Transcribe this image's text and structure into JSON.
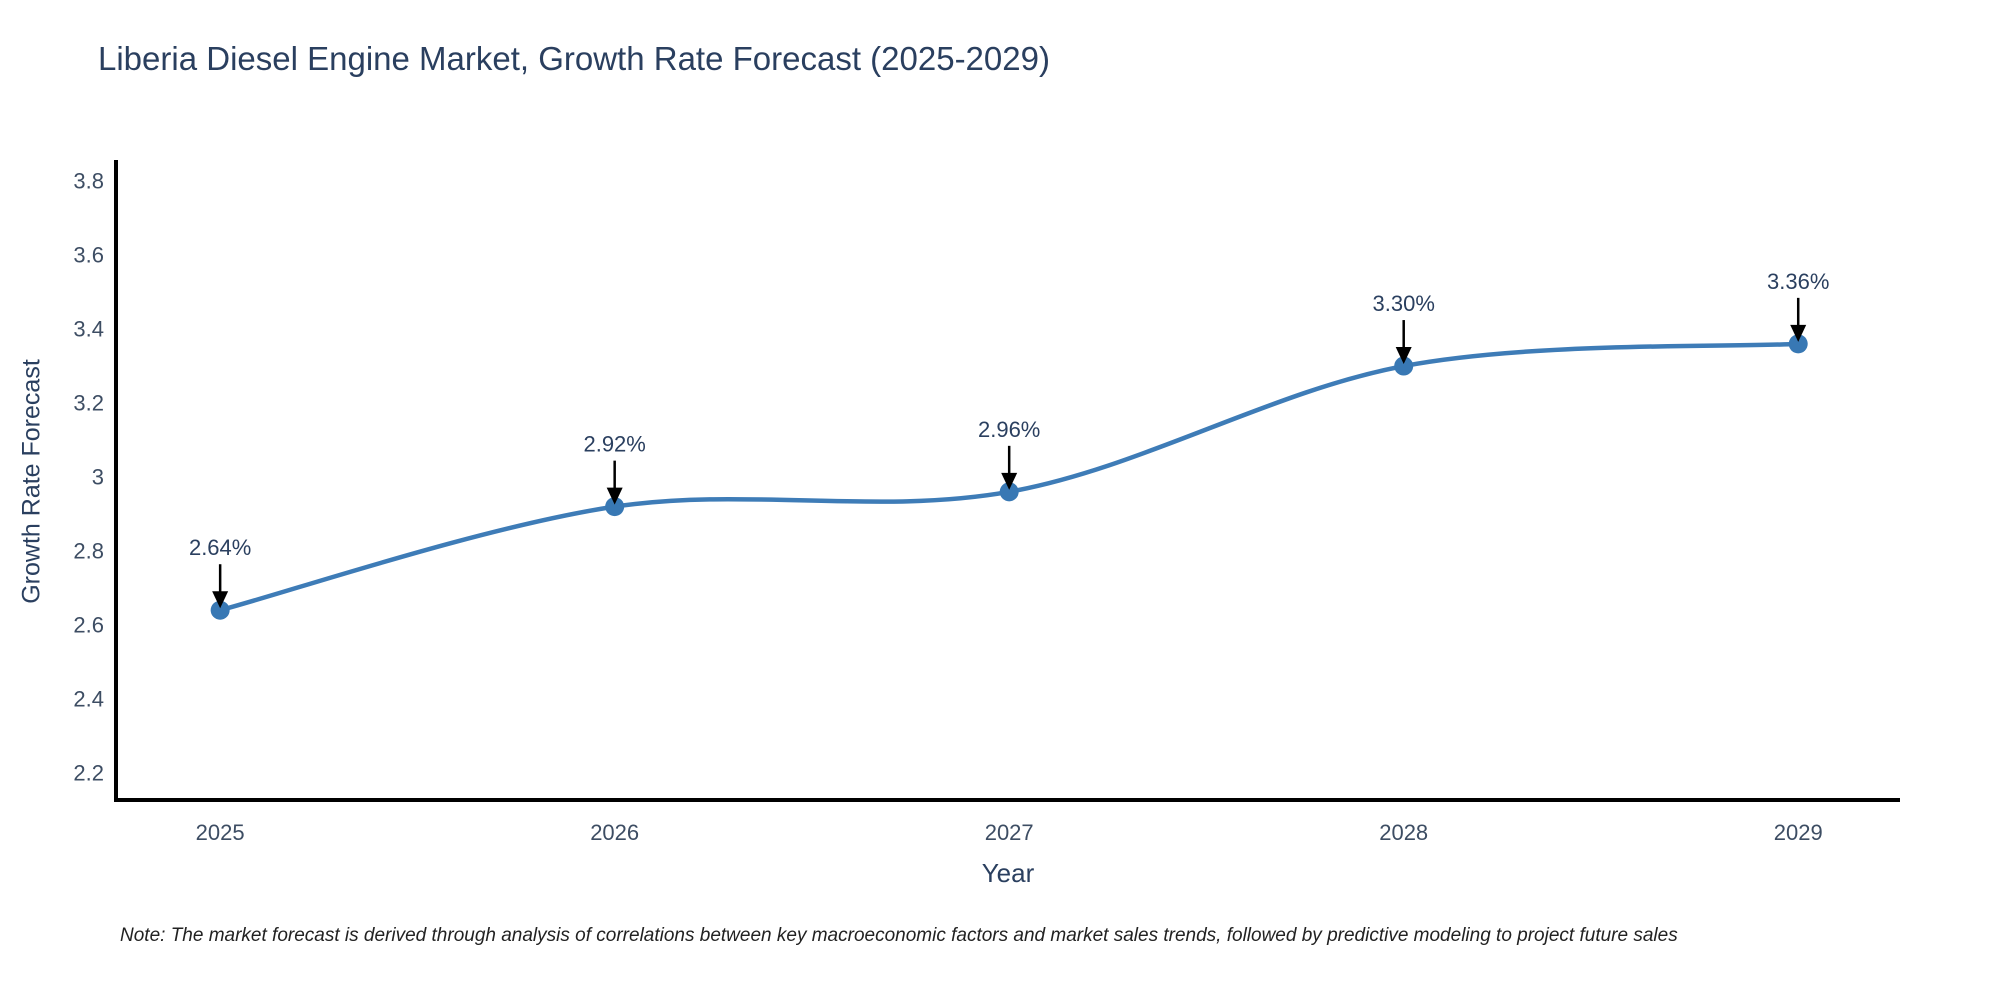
{
  "figure": {
    "title": "Liberia Diesel Engine Market, Growth Rate Forecast (2025-2029)",
    "footnote": "Note: The market forecast is derived through analysis of correlations between key macroeconomic factors and market sales trends, followed by predictive modeling to project future sales"
  },
  "chart_data": {
    "type": "line",
    "title": "Liberia Diesel Engine Market, Growth Rate Forecast (2025-2029)",
    "xlabel": "Year",
    "ylabel": "Growth Rate Forecast",
    "x": [
      2025,
      2026,
      2027,
      2028,
      2029
    ],
    "values": [
      2.64,
      2.92,
      2.96,
      3.3,
      3.36
    ],
    "point_labels": [
      "2.64%",
      "2.92%",
      "2.96%",
      "3.30%",
      "3.36%"
    ],
    "x_tick_labels": [
      "2025",
      "2026",
      "2027",
      "2028",
      "2029"
    ],
    "y_ticks": [
      3.8,
      3.6,
      3.4,
      3.2,
      3.0,
      2.8,
      2.6,
      2.4,
      2.2
    ],
    "y_tick_labels": [
      "3.8",
      "3.6",
      "3.4",
      "3.2",
      "3",
      "2.8",
      "2.6",
      "2.4",
      "2.2"
    ],
    "xlim": [
      2024.736,
      2029.258
    ],
    "ylim": [
      2.127,
      3.857
    ],
    "line_shape": "spline",
    "grid": false,
    "legend": "none",
    "annotations": "value labels with downward arrows above each point",
    "colors": {
      "line": "#3e7cb7",
      "marker": "#3878b4",
      "arrow": "#000000",
      "axis_line": "#000000",
      "title_text": "#2a3f5f",
      "tick_text": "#3d4d63",
      "annotation_text": "#2a3f5f",
      "note_text": "#222222",
      "background": "#ffffff"
    }
  }
}
